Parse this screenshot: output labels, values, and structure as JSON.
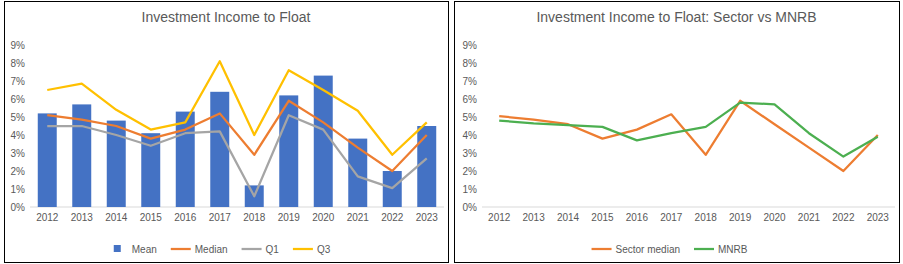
{
  "chart_data": [
    {
      "type": "bar",
      "title": "Investment Income to Float",
      "categories": [
        "2012",
        "2013",
        "2014",
        "2015",
        "2016",
        "2017",
        "2018",
        "2019",
        "2020",
        "2021",
        "2022",
        "2023"
      ],
      "series": [
        {
          "name": "Mean",
          "type": "bar",
          "color": "#4472c4",
          "values": [
            5.2,
            5.7,
            4.8,
            4.1,
            5.3,
            6.4,
            1.2,
            6.2,
            7.3,
            3.8,
            2.0,
            4.5
          ]
        },
        {
          "name": "Median",
          "type": "line",
          "color": "#ed7d31",
          "values": [
            5.1,
            4.85,
            4.5,
            3.8,
            4.3,
            5.2,
            2.9,
            5.9,
            4.7,
            3.3,
            2.0,
            4.0
          ]
        },
        {
          "name": "Q1",
          "type": "line",
          "color": "#a5a5a5",
          "values": [
            4.5,
            4.5,
            4.0,
            3.4,
            4.1,
            4.2,
            0.6,
            5.1,
            4.3,
            1.7,
            1.05,
            2.7
          ]
        },
        {
          "name": "Q3",
          "type": "line",
          "color": "#ffc000",
          "values": [
            6.5,
            6.85,
            5.4,
            4.3,
            4.7,
            8.1,
            4.0,
            7.6,
            6.5,
            5.35,
            2.9,
            4.7
          ]
        }
      ],
      "ylim": [
        0,
        9
      ],
      "yticks": [
        {
          "value": 0,
          "label": "0%"
        },
        {
          "value": 1,
          "label": "1%"
        },
        {
          "value": 2,
          "label": "2%"
        },
        {
          "value": 3,
          "label": "3%"
        },
        {
          "value": 4,
          "label": "4%"
        },
        {
          "value": 5,
          "label": "5%"
        },
        {
          "value": 6,
          "label": "6%"
        },
        {
          "value": 7,
          "label": "7%"
        },
        {
          "value": 8,
          "label": "8%"
        },
        {
          "value": 9,
          "label": "9%"
        }
      ],
      "grid": false,
      "legend": "bottom"
    },
    {
      "type": "line",
      "title": "Investment Income to Float: Sector vs MNRB",
      "categories": [
        "2012",
        "2013",
        "2014",
        "2015",
        "2016",
        "2017",
        "2018",
        "2019",
        "2020",
        "2021",
        "2022",
        "2023"
      ],
      "series": [
        {
          "name": "Sector median",
          "type": "line",
          "color": "#ed7d31",
          "values": [
            5.05,
            4.85,
            4.6,
            3.8,
            4.3,
            5.15,
            2.9,
            5.9,
            4.6,
            3.3,
            2.0,
            4.0
          ]
        },
        {
          "name": "MNRB",
          "type": "line",
          "color": "#4caf50",
          "values": [
            4.8,
            4.65,
            4.55,
            4.45,
            3.7,
            4.1,
            4.45,
            5.8,
            5.7,
            4.1,
            2.8,
            3.9
          ]
        }
      ],
      "ylim": [
        0,
        9
      ],
      "yticks": [
        {
          "value": 0,
          "label": "0%"
        },
        {
          "value": 1,
          "label": "1%"
        },
        {
          "value": 2,
          "label": "2%"
        },
        {
          "value": 3,
          "label": "3%"
        },
        {
          "value": 4,
          "label": "4%"
        },
        {
          "value": 5,
          "label": "5%"
        },
        {
          "value": 6,
          "label": "6%"
        },
        {
          "value": 7,
          "label": "7%"
        },
        {
          "value": 8,
          "label": "8%"
        },
        {
          "value": 9,
          "label": "9%"
        }
      ],
      "grid": false,
      "legend": "bottom"
    }
  ]
}
